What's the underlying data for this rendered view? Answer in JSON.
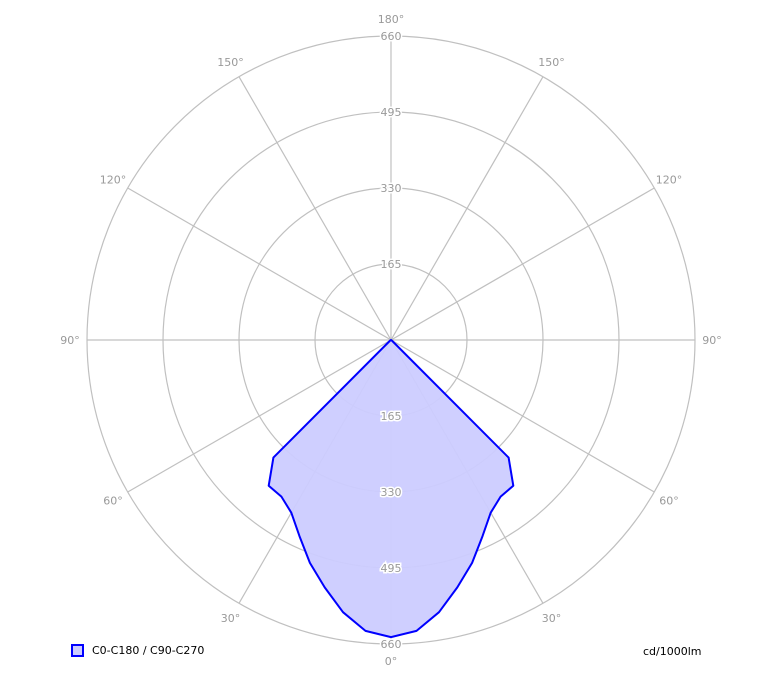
{
  "chart_data": {
    "type": "polar",
    "unit_label": "cd/1000lm",
    "radial_ticks": [
      165,
      330,
      495,
      660
    ],
    "rlim": [
      0,
      660
    ],
    "angle_labels": [
      "0°",
      "30°",
      "60°",
      "90°",
      "120°",
      "150°",
      "180°"
    ],
    "angular_grid_step_deg": 30,
    "grid": true,
    "legend_placement": "bottom-left",
    "series": [
      {
        "name": "C0-C180 / C90-C270",
        "color": "#0000ff",
        "fill": "#ccccff",
        "angles": [
          0,
          5,
          10,
          15,
          20,
          25,
          30,
          35,
          40,
          45,
          50,
          60,
          70,
          80,
          90
        ],
        "values": [
          645,
          634,
          600,
          556,
          515,
          470,
          433,
          415,
          413,
          361,
          5,
          2,
          1,
          0,
          0
        ]
      }
    ]
  }
}
